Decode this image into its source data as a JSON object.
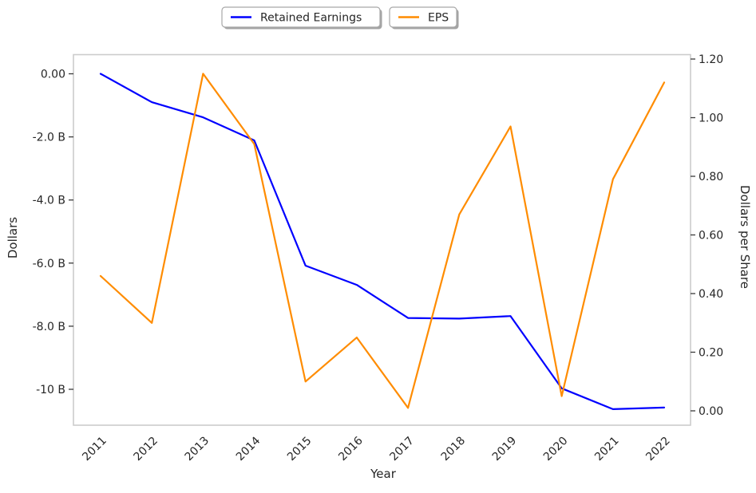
{
  "chart_data": {
    "type": "line",
    "title": "",
    "xlabel": "Year",
    "ylabel_left": "Dollars",
    "ylabel_right": "Dollars per Share",
    "x": [
      2011,
      2012,
      2013,
      2014,
      2015,
      2016,
      2017,
      2018,
      2019,
      2020,
      2021,
      2022
    ],
    "x_tick_labels": [
      "2011",
      "2012",
      "2013",
      "2014",
      "2015",
      "2016",
      "2017",
      "2018",
      "2019",
      "2020",
      "2021",
      "2022"
    ],
    "x_tick_rotation": 45,
    "grid": false,
    "series": [
      {
        "name": "Retained Earnings",
        "axis": "left",
        "color": "#0000ff",
        "unit": "USD billions",
        "values": [
          0.0,
          -0.9,
          -1.38,
          -2.11,
          -6.08,
          -6.69,
          -7.74,
          -7.76,
          -7.68,
          -9.97,
          -10.63,
          -10.58
        ]
      },
      {
        "name": "EPS",
        "axis": "right",
        "color": "#ff8c00",
        "unit": "USD per share",
        "values": [
          0.46,
          0.3,
          1.15,
          0.91,
          0.1,
          0.25,
          0.01,
          0.67,
          0.97,
          0.05,
          0.79,
          1.12
        ]
      }
    ],
    "left_axis": {
      "label": "Dollars",
      "ticks_billions": [
        0,
        -2,
        -4,
        -6,
        -8,
        -10
      ],
      "tick_labels": [
        "0.00",
        "-2.0 B",
        "-4.0 B",
        "-6.0 B",
        "-8.0 B",
        "-10 B"
      ],
      "range_billions": [
        -11.14,
        0.62
      ]
    },
    "right_axis": {
      "label": "Dollars per Share",
      "ticks": [
        0.0,
        0.2,
        0.4,
        0.6,
        0.8,
        1.0,
        1.2
      ],
      "tick_labels": [
        "0.00",
        "0.20",
        "0.40",
        "0.60",
        "0.80",
        "1.00",
        "1.20"
      ],
      "range": [
        -0.05,
        1.22
      ]
    }
  },
  "legend": {
    "position": "top-center",
    "items": [
      {
        "label": "Retained Earnings",
        "color": "#0000ff"
      },
      {
        "label": "EPS",
        "color": "#ff8c00"
      }
    ]
  }
}
